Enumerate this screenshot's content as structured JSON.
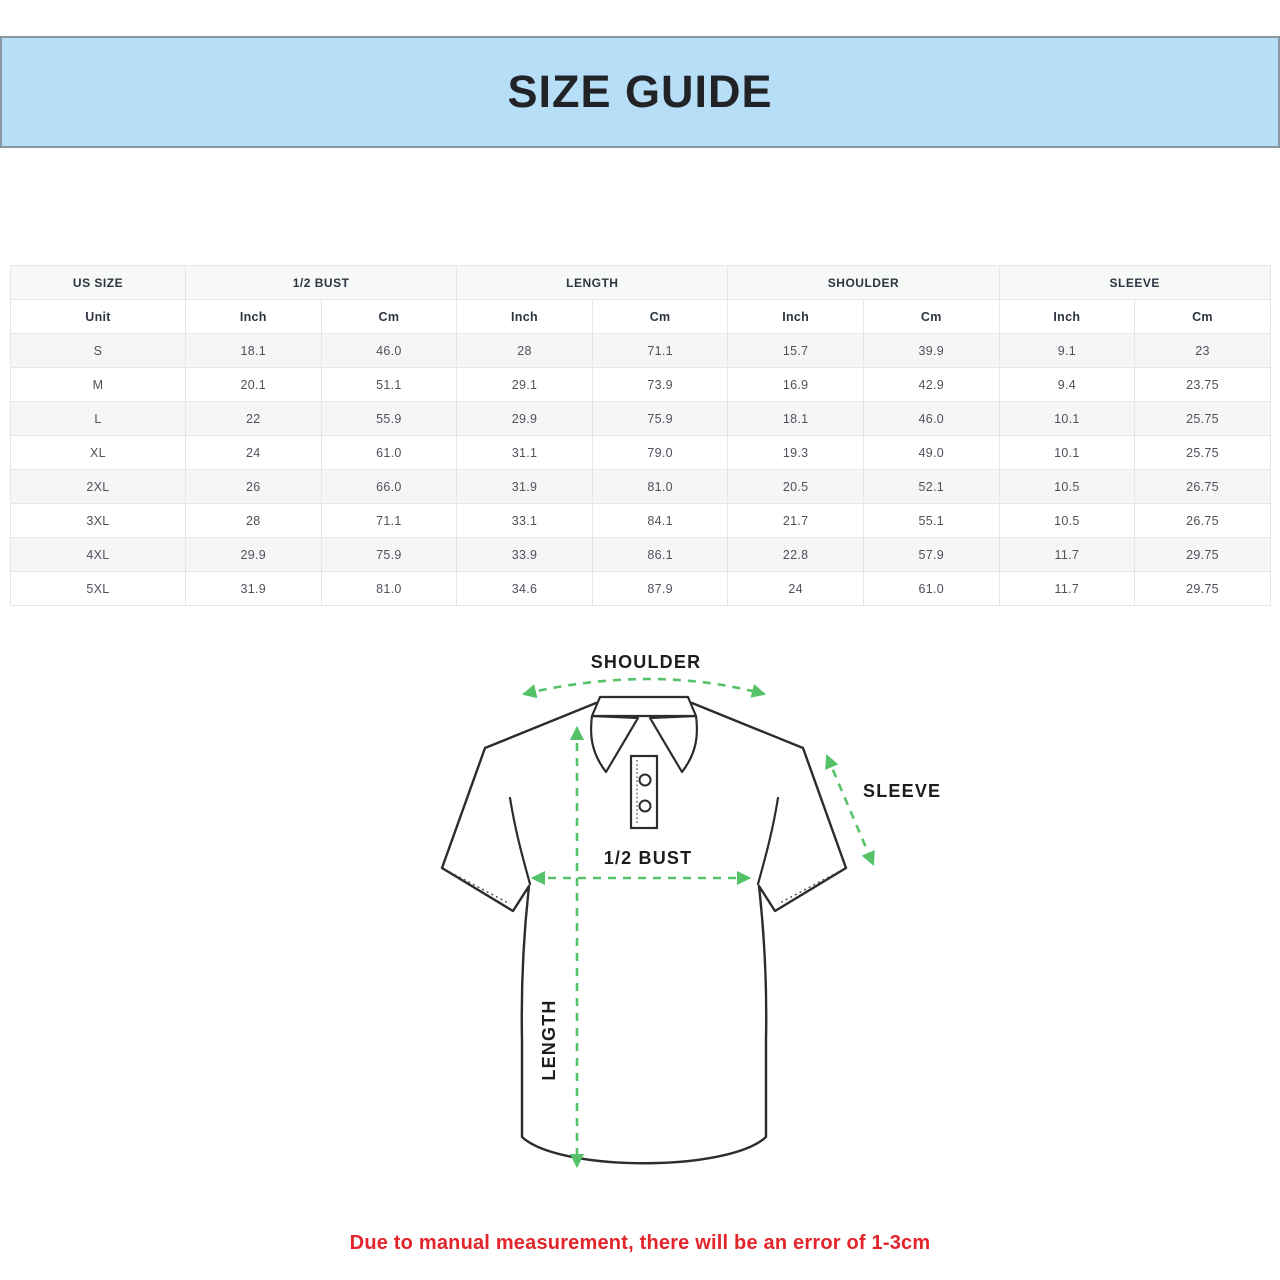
{
  "banner": {
    "title": "SIZE GUIDE"
  },
  "table": {
    "groups": [
      {
        "label": "US SIZE",
        "span": 1
      },
      {
        "label": "1/2 BUST",
        "span": 2
      },
      {
        "label": "LENGTH",
        "span": 2
      },
      {
        "label": "SHOULDER",
        "span": 2
      },
      {
        "label": "SLEEVE",
        "span": 2
      }
    ],
    "unit_row": [
      "Unit",
      "Inch",
      "Cm",
      "Inch",
      "Cm",
      "Inch",
      "Cm",
      "Inch",
      "Cm"
    ],
    "rows": [
      [
        "S",
        "18.1",
        "46.0",
        "28",
        "71.1",
        "15.7",
        "39.9",
        "9.1",
        "23"
      ],
      [
        "M",
        "20.1",
        "51.1",
        "29.1",
        "73.9",
        "16.9",
        "42.9",
        "9.4",
        "23.75"
      ],
      [
        "L",
        "22",
        "55.9",
        "29.9",
        "75.9",
        "18.1",
        "46.0",
        "10.1",
        "25.75"
      ],
      [
        "XL",
        "24",
        "61.0",
        "31.1",
        "79.0",
        "19.3",
        "49.0",
        "10.1",
        "25.75"
      ],
      [
        "2XL",
        "26",
        "66.0",
        "31.9",
        "81.0",
        "20.5",
        "52.1",
        "10.5",
        "26.75"
      ],
      [
        "3XL",
        "28",
        "71.1",
        "33.1",
        "84.1",
        "21.7",
        "55.1",
        "10.5",
        "26.75"
      ],
      [
        "4XL",
        "29.9",
        "75.9",
        "33.9",
        "86.1",
        "22.8",
        "57.9",
        "11.7",
        "29.75"
      ],
      [
        "5XL",
        "31.9",
        "81.0",
        "34.6",
        "87.9",
        "24",
        "61.0",
        "11.7",
        "29.75"
      ]
    ]
  },
  "diagram": {
    "labels": {
      "shoulder": "SHOULDER",
      "sleeve": "SLEEVE",
      "bust": "1/2 BUST",
      "length": "LENGTH"
    },
    "arrow_color": "#56c268",
    "outline_color": "#2c2c2c"
  },
  "note": {
    "text": "Due to manual measurement, there will be an error of 1-3cm"
  },
  "colors": {
    "banner_bg": "#b6def7",
    "banner_border": "#8a98a3",
    "note_red": "#e1252b",
    "row_shade": "#f6f6f7",
    "grid_line": "#e4e6e8"
  }
}
